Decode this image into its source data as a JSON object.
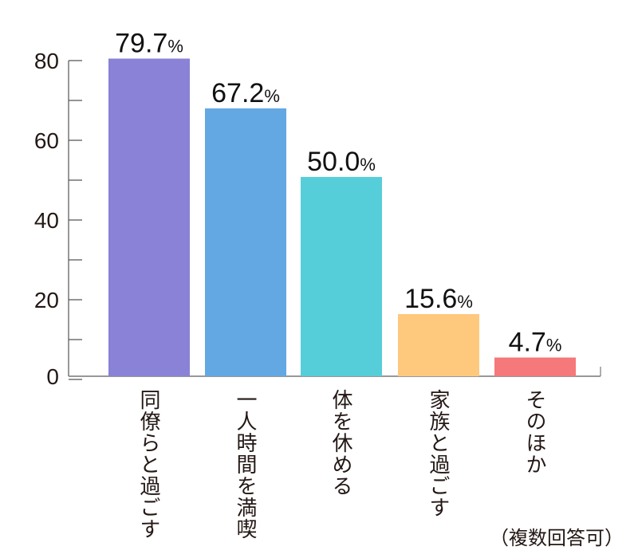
{
  "chart_data": {
    "type": "bar",
    "categories": [
      "同僚らと過ごす",
      "一人時間を満喫",
      "体を休める",
      "家族と過ごす",
      "そのほか"
    ],
    "values": [
      79.7,
      67.2,
      50.0,
      15.6,
      4.7
    ],
    "value_labels": [
      "79.7",
      "67.2",
      "50.0",
      "15.6",
      "4.7"
    ],
    "unit": "%",
    "colors": [
      "#8982d6",
      "#63a8e3",
      "#56ced9",
      "#fec97d",
      "#f5787a"
    ],
    "ylim": [
      0,
      80
    ],
    "yticks": [
      "0",
      "20",
      "40",
      "60",
      "80"
    ],
    "minor_ticks": [
      10,
      30,
      50,
      70
    ],
    "note": "（複数回答可）",
    "grid": false
  }
}
